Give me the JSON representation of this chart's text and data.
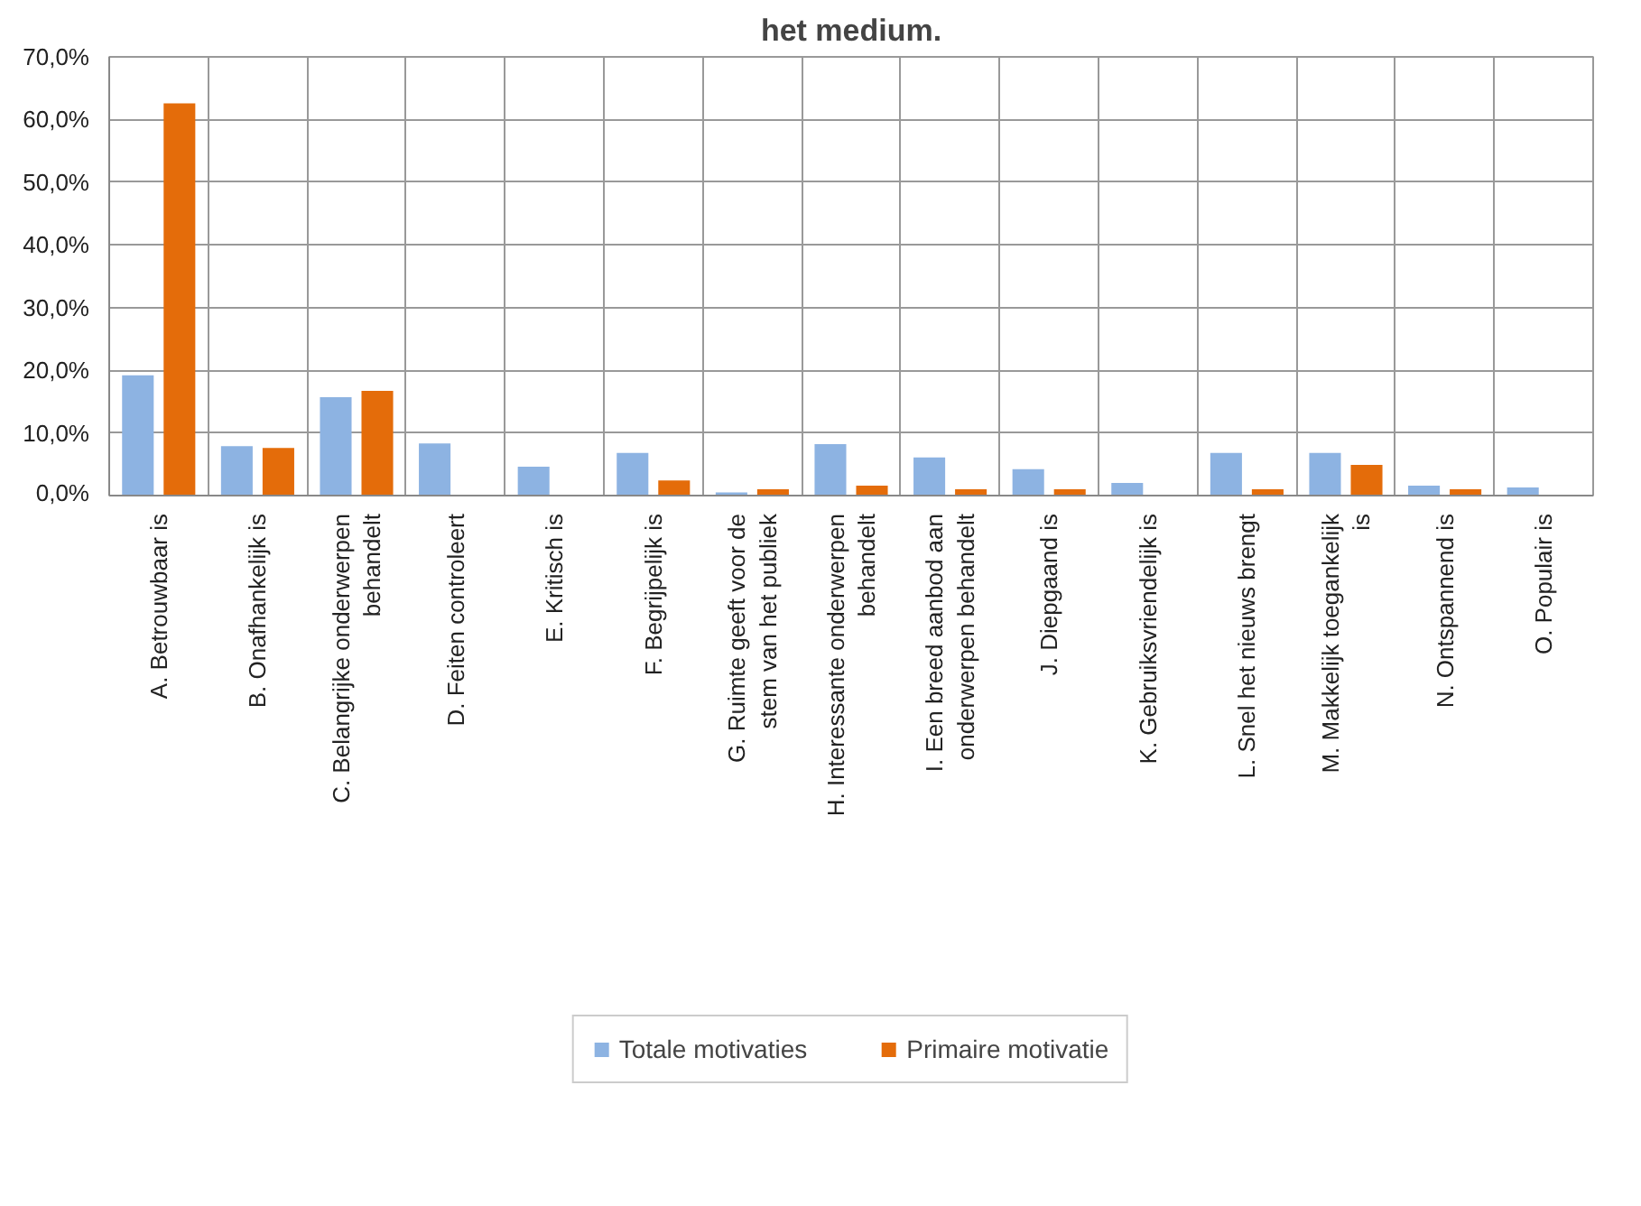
{
  "chart_data": {
    "type": "bar",
    "title": "het medium.",
    "categories": [
      "A. Betrouwbaar is",
      "B. Onafhankelijk is",
      "C. Belangrijke onderwerpen behandelt",
      "D. Feiten controleert",
      "E. Kritisch is",
      "F. Begrijpelijk is",
      "G. Ruimte geeft voor de stem van het publiek",
      "H. Interessante onderwerpen behandelt",
      "I. Een breed aanbod aan onderwerpen behandelt",
      "J. Diepgaand is",
      "K. Gebruiksvriendelijk is",
      "L. Snel het nieuws brengt",
      "M. Makkelijk toegankelijk is",
      "N. Ontspannend is",
      "O. Populair is"
    ],
    "series": [
      {
        "name": "Totale motivaties",
        "color": "#8db3e2",
        "values": [
          19.2,
          7.9,
          15.7,
          8.3,
          4.6,
          6.8,
          0.5,
          8.2,
          6.1,
          4.2,
          2.0,
          6.8,
          6.8,
          1.6,
          1.3
        ]
      },
      {
        "name": "Primaire motivatie",
        "color": "#e46c0a",
        "values": [
          62.6,
          7.6,
          16.7,
          0,
          0,
          2.4,
          1.0,
          1.6,
          1.0,
          1.0,
          0,
          1.0,
          4.9,
          1.0,
          0
        ]
      }
    ],
    "ylim": [
      0,
      70
    ],
    "yticks": [
      {
        "value": 0,
        "label": "0,0%"
      },
      {
        "value": 10,
        "label": "10,0%"
      },
      {
        "value": 20,
        "label": "20,0%"
      },
      {
        "value": 30,
        "label": "30,0%"
      },
      {
        "value": 40,
        "label": "40,0%"
      },
      {
        "value": 50,
        "label": "50,0%"
      },
      {
        "value": 60,
        "label": "60,0%"
      },
      {
        "value": 70,
        "label": "70,0%"
      }
    ],
    "grid": true,
    "legend": "bottom"
  }
}
